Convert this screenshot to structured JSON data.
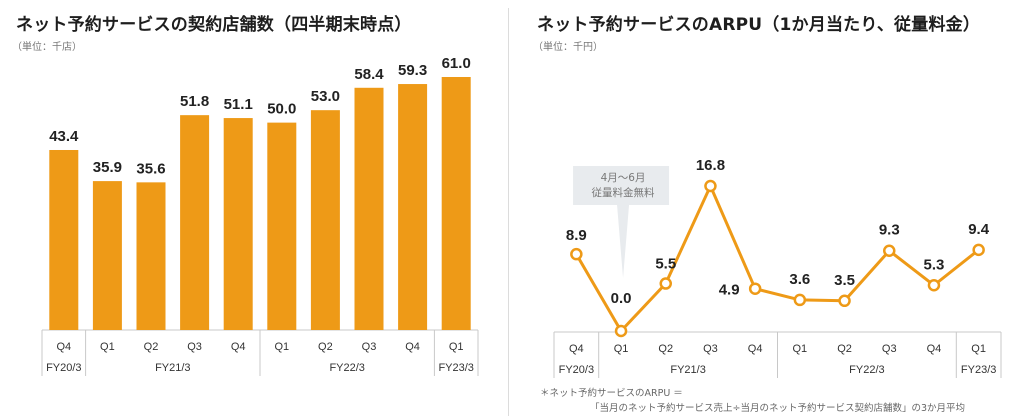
{
  "chart_data": [
    {
      "type": "bar",
      "title": "ネット予約サービスの契約店舗数（四半期末時点）",
      "unit_label": "（単位：千店）",
      "xlabel": "",
      "ylabel": "",
      "ylim": [
        0,
        61.0
      ],
      "grid": false,
      "legend": "none",
      "color": "#EE9A17",
      "categories": [
        "Q4",
        "Q1",
        "Q2",
        "Q3",
        "Q4",
        "Q1",
        "Q2",
        "Q3",
        "Q4",
        "Q1"
      ],
      "fiscal_years": [
        {
          "label": "FY20/3",
          "span": 1
        },
        {
          "label": "FY21/3",
          "span": 4
        },
        {
          "label": "FY22/3",
          "span": 4
        },
        {
          "label": "FY23/3",
          "span": 1
        }
      ],
      "values": [
        43.4,
        35.9,
        35.6,
        51.8,
        51.1,
        50.0,
        53.0,
        58.4,
        59.3,
        61.0
      ],
      "value_labels": [
        "43.4",
        "35.9",
        "35.6",
        "51.8",
        "51.1",
        "50.0",
        "53.0",
        "58.4",
        "59.3",
        "61.0"
      ]
    },
    {
      "type": "line",
      "title": "ネット予約サービスのARPU（1か月当たり、従量料金）",
      "unit_label": "（単位：千円）",
      "xlabel": "",
      "ylabel": "",
      "ylim": [
        0,
        16.8
      ],
      "grid": false,
      "legend": "none",
      "color": "#EE9A17",
      "categories": [
        "Q4",
        "Q1",
        "Q2",
        "Q3",
        "Q4",
        "Q1",
        "Q2",
        "Q3",
        "Q4",
        "Q1"
      ],
      "fiscal_years": [
        {
          "label": "FY20/3",
          "span": 1
        },
        {
          "label": "FY21/3",
          "span": 4
        },
        {
          "label": "FY22/3",
          "span": 4
        },
        {
          "label": "FY23/3",
          "span": 1
        }
      ],
      "values": [
        8.9,
        0.0,
        5.5,
        16.8,
        4.9,
        3.6,
        3.5,
        9.3,
        5.3,
        9.4
      ],
      "value_labels": [
        "8.9",
        "0.0",
        "5.5",
        "16.8",
        "4.9",
        "3.6",
        "3.5",
        "9.3",
        "5.3",
        "9.4"
      ],
      "annotation": {
        "target_index": 1,
        "lines": [
          "4月〜6月",
          "従量料金無料"
        ]
      },
      "footnote": [
        "＊ネット予約サービスのARPU ＝",
        "「当月のネット予約サービス売上÷当月のネット予約サービス契約店舗数」の3か月平均"
      ]
    }
  ]
}
